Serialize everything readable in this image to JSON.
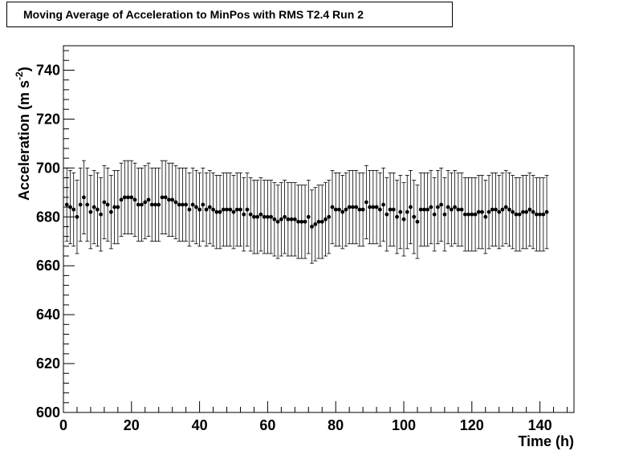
{
  "chart_data": {
    "type": "scatter",
    "title": "Moving Average of Acceleration to MinPos with RMS T2.4 Run 2",
    "xlabel": "Time (h)",
    "ylabel": "Acceleration (m s^-2)",
    "ylabel_parts": {
      "base": "Acceleration (m s",
      "sup": "-2",
      "close": ")"
    },
    "xlim": [
      0,
      150
    ],
    "ylim": [
      600,
      750
    ],
    "x_ticks": [
      0,
      20,
      40,
      60,
      80,
      100,
      120,
      140
    ],
    "x_tick_labels": [
      "0",
      "20",
      "40",
      "60",
      "80",
      "100",
      "120",
      "140"
    ],
    "y_ticks": [
      600,
      620,
      640,
      660,
      680,
      700,
      720,
      740
    ],
    "y_tick_labels": [
      "600",
      "620",
      "640",
      "660",
      "680",
      "700",
      "720",
      "740"
    ],
    "error_half_width": 15,
    "marker_color": "#000000",
    "grid": false,
    "series": [
      {
        "x_start": 1,
        "x_step": 1,
        "values": [
          685,
          684,
          683,
          680,
          685,
          688,
          685,
          682,
          684,
          683,
          681,
          686,
          685,
          682,
          684,
          684,
          687,
          688,
          688,
          688,
          687,
          685,
          685,
          686,
          687,
          685,
          685,
          685,
          688,
          688,
          687,
          687,
          686,
          685,
          685,
          685,
          683,
          685,
          684,
          683,
          685,
          683,
          684,
          683,
          682,
          682,
          683,
          683,
          683,
          682,
          683,
          683,
          681,
          683,
          681,
          680,
          680,
          681,
          680,
          680,
          680,
          679,
          678,
          679,
          680,
          679,
          679,
          679,
          678,
          678,
          678,
          680,
          676,
          677,
          678,
          678,
          679,
          680,
          684,
          683,
          683,
          682,
          683,
          684,
          684,
          684,
          683,
          683,
          686,
          684,
          684,
          684,
          683,
          685,
          681,
          683,
          683,
          680,
          682,
          679,
          682,
          684,
          680,
          678,
          683,
          683,
          683,
          684,
          681,
          684,
          685,
          681,
          684,
          683,
          684,
          683,
          683,
          681,
          681,
          681,
          681,
          682,
          682,
          680,
          682,
          683,
          683,
          682,
          683,
          684,
          683,
          682,
          681,
          681,
          682,
          682,
          683,
          682,
          681,
          681,
          681,
          682
        ]
      }
    ]
  }
}
